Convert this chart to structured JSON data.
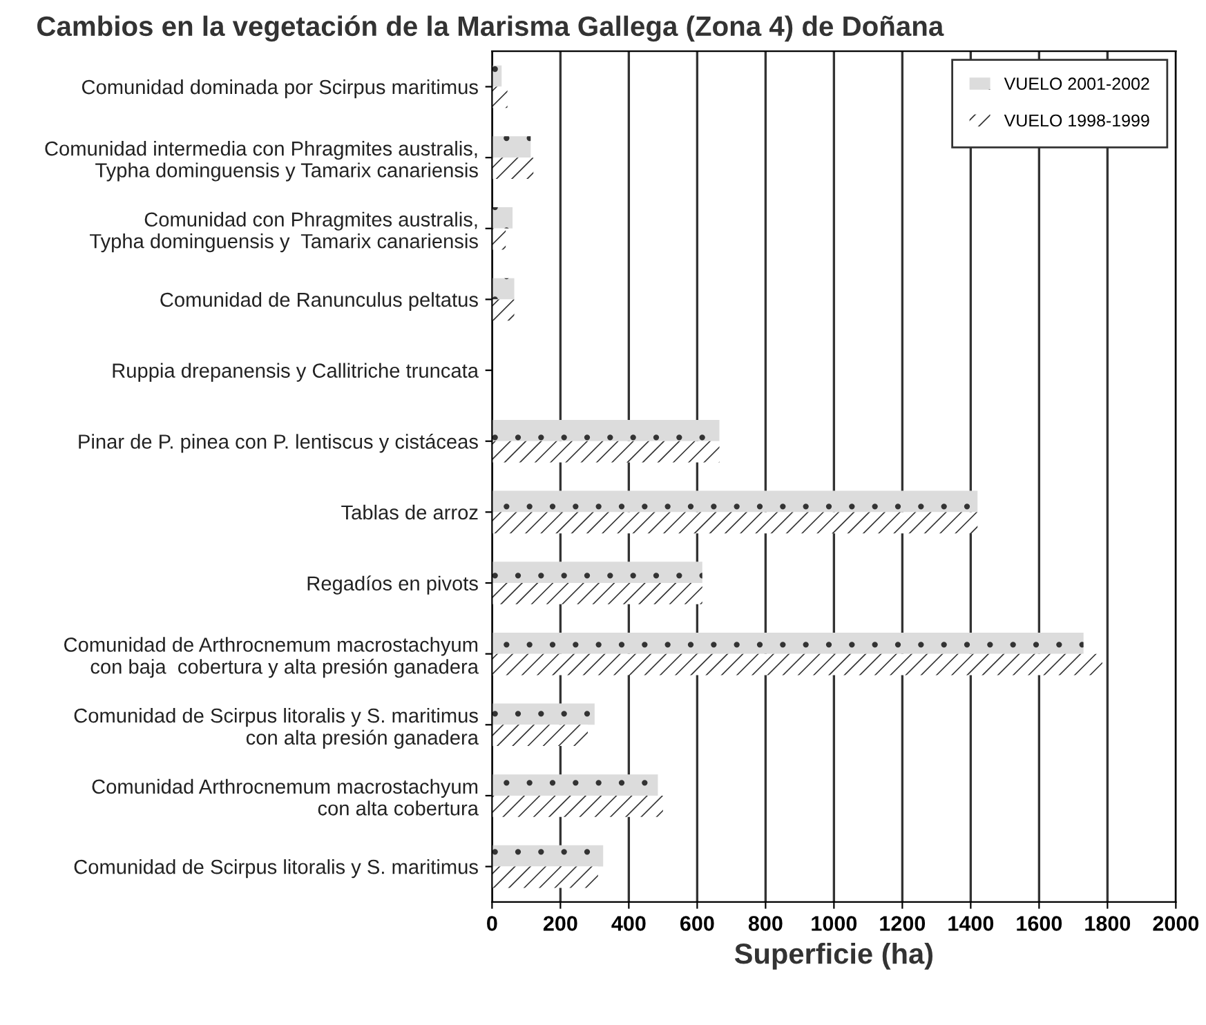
{
  "chart_data": {
    "type": "bar",
    "orientation": "horizontal",
    "title": "Cambios en la vegetación de la Marisma Gallega (Zona 4) de Doñana",
    "xlabel": "Superficie (ha)",
    "categories": [
      "Comunidad dominada por Scirpus maritimus",
      "Comunidad intermedia con Phragmites australis,\nTypha dominguensis y Tamarix canariensis",
      "Comunidad con Phragmites australis,\nTypha dominguensis y  Tamarix canariensis",
      "Comunidad de Ranunculus peltatus",
      "Ruppia drepanensis y Callitriche truncata",
      "Pinar de P. pinea con P. lentiscus y cistáceas",
      "Tablas de arroz",
      "Regadíos en pivots",
      "Comunidad de Arthrocnemum macrostachyum\ncon baja  cobertura y alta presión ganadera",
      "Comunidad de Scirpus litoralis y S. maritimus\ncon alta presión ganadera",
      "Comunidad Arthrocnemum macrostachyum\ncon alta cobertura",
      "Comunidad de Scirpus litoralis y S. maritimus"
    ],
    "series": [
      {
        "name": "VUELO 2001-2002",
        "color": "#dcdcdc",
        "values": [
          28,
          113,
          60,
          65,
          0,
          665,
          1420,
          615,
          1730,
          300,
          485,
          325
        ]
      },
      {
        "name": "VUELO 1998-1999",
        "color": "#ffffff",
        "values": [
          45,
          121,
          40,
          65,
          0,
          665,
          1420,
          615,
          1785,
          280,
          500,
          310
        ]
      }
    ],
    "xlim": [
      0,
      2000
    ],
    "xticks": [
      0,
      200,
      400,
      600,
      800,
      1000,
      1200,
      1400,
      1600,
      1800,
      2000
    ],
    "grid": "x",
    "legend": "top right"
  }
}
